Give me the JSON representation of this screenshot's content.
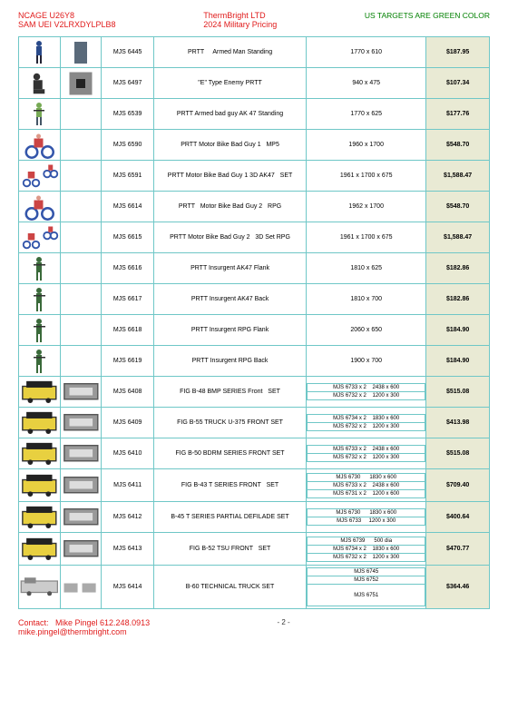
{
  "header": {
    "ncage": "NCAGE U26Y8",
    "sam": "SAM UEI V2LRXDYLPLB8",
    "company": "ThermBright LTD",
    "pricing": "2024 Military Pricing",
    "note": "US TARGETS ARE GREEN COLOR"
  },
  "rows": [
    {
      "code": "MJS 6445",
      "desc": "PRTT     Armed Man Standing",
      "dim": "1770 x 610",
      "price": "$187.95",
      "i1": "man-blue",
      "i2": "gray-rect"
    },
    {
      "code": "MJS 6497",
      "desc": "\"E\" Type Enemy PRTT",
      "dim": "940 x 475",
      "price": "$107.34",
      "i1": "man-kneel",
      "i2": "e-target"
    },
    {
      "code": "MJS 6539",
      "desc": "PRTT Armed bad guy AK 47 Standing",
      "dim": "1770 x 625",
      "price": "$177.76",
      "i1": "man-ak",
      "i2": ""
    },
    {
      "code": "MJS 6590",
      "desc": "PRTT Motor Bike Bad Guy 1   MP5",
      "dim": "1960 x 1700",
      "price": "$548.70",
      "i1": "bike1",
      "i2": ""
    },
    {
      "code": "MJS 6591",
      "desc": "PRTT Motor Bike Bad Guy 1 3D AK47   SET",
      "dim": "1961 x 1700 x 675",
      "price": "$1,588.47",
      "i1": "bike-set",
      "i2": ""
    },
    {
      "code": "MJS 6614",
      "desc": "PRTT   Motor Bike Bad Guy 2   RPG",
      "dim": "1962 x 1700",
      "price": "$548.70",
      "i1": "bike2",
      "i2": ""
    },
    {
      "code": "MJS 6615",
      "desc": "PRTT Motor Bike Bad Guy 2   3D Set RPG",
      "dim": "1961 x 1700 x 675",
      "price": "$1,588.47",
      "i1": "bike-set",
      "i2": ""
    },
    {
      "code": "MJS 6616",
      "desc": "PRTT Insurgent AK47 Flank",
      "dim": "1810 x 625",
      "price": "$182.86",
      "i1": "green-man-side",
      "i2": ""
    },
    {
      "code": "MJS 6617",
      "desc": "PRTT Insurgent AK47 Back",
      "dim": "1810 x 700",
      "price": "$182.86",
      "i1": "green-man-back",
      "i2": ""
    },
    {
      "code": "MJS 6618",
      "desc": "PRTT Insurgent RPG Flank",
      "dim": "2060 x 650",
      "price": "$184.90",
      "i1": "green-man-rpg",
      "i2": ""
    },
    {
      "code": "MJS 6619",
      "desc": "PRTT Insurgent RPG Back",
      "dim": "1900 x 700",
      "price": "$184.90",
      "i1": "green-man-back",
      "i2": ""
    },
    {
      "code": "MJS 6408",
      "desc": "FIG B-48 BMP SERIES Front   SET",
      "price": "$515.08",
      "i1": "vehicle-y",
      "i2": "vehicle-g",
      "sub": [
        "MJS 6733 x 2    2438 x 600",
        "MJS 6732 x 2    1200 x 300"
      ]
    },
    {
      "code": "MJS 6409",
      "desc": "FIG B-55 TRUCK U-375 FRONT SET",
      "price": "$413.98",
      "i1": "vehicle-y",
      "i2": "vehicle-g",
      "sub": [
        "MJS 6734 x 2    1830 x 600",
        "MJS 6732 x 2    1200 x 300"
      ]
    },
    {
      "code": "MJS 6410",
      "desc": "FIG B-50 BDRM SERIES FRONT SET",
      "price": "$515.08",
      "i1": "vehicle-y",
      "i2": "vehicle-g",
      "sub": [
        "MJS 6733 x 2    2438 x 600",
        "MJS 6732 x 2    1200 x 300"
      ]
    },
    {
      "code": "MJS 6411",
      "desc": "FIG B-43 T SERIES FRONT   SET",
      "price": "$709.40",
      "i1": "vehicle-y",
      "i2": "vehicle-g",
      "sub": [
        "MJS 6730      1830 x 600",
        "MJS 6733 x 2    2438 x 600",
        "MJS 6731 x 2    1200 x 600"
      ]
    },
    {
      "code": "MJS 6412",
      "desc": "B-45 T SERIES PARTIAL DEFILADE SET",
      "price": "$400.64",
      "i1": "vehicle-y",
      "i2": "vehicle-g",
      "sub": [
        "MJS 6730      1830 x 600",
        "MJS 6733     1200 x 300"
      ]
    },
    {
      "code": "MJS 6413",
      "desc": "FIG B-52 TSU FRONT   SET",
      "price": "$470.77",
      "i1": "vehicle-y",
      "i2": "vehicle-g",
      "sub": [
        "MJS 6739      500 dia",
        "MJS 6734 x 2    1830 x 600",
        "MJS 6732 x 2    1200 x 300"
      ]
    },
    {
      "code": "MJS 6414",
      "desc": "B-60 TECHNICAL TRUCK SET",
      "price": "$364.46",
      "i1": "vehicle-wide",
      "i2": "vehicle-pair",
      "sub": [
        "MJS 6745",
        "MJS 6752",
        "MJS 6751"
      ],
      "tall": true
    }
  ],
  "footer": {
    "contact": "Contact:   Mike Pingel 612.248.0913",
    "email": "mike.pingel@thermbright.com",
    "page": "- 2 -"
  },
  "colors": {
    "red": "#e01b1b",
    "green": "#008000",
    "border": "#6fc7c7",
    "price_bg": "#e9ead4"
  }
}
